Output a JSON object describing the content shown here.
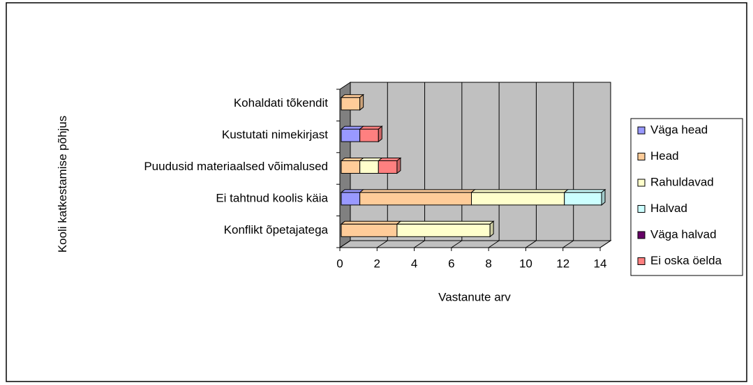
{
  "chart_data": {
    "type": "bar3d_stacked_horizontal",
    "xlabel": "Vastanute arv",
    "ylabel": "Kooli katkestamise põhjus",
    "categories": [
      "Konflikt õpetajatega",
      "Ei tahtnud koolis käia",
      "Puudusid materiaalsed võimalused",
      "Kustutati nimekirjast",
      "Kohaldati tõkendit"
    ],
    "series": [
      {
        "name": "Väga head",
        "color": "#9999ff",
        "values": [
          0,
          1,
          0,
          1,
          0
        ]
      },
      {
        "name": "Head",
        "color": "#ffcc99",
        "values": [
          3,
          6,
          1,
          0,
          1
        ]
      },
      {
        "name": "Rahuldavad",
        "color": "#ffffcc",
        "values": [
          5,
          5,
          1,
          0,
          0
        ]
      },
      {
        "name": "Halvad",
        "color": "#ccffff",
        "values": [
          0,
          2,
          0,
          0,
          0
        ]
      },
      {
        "name": "Väga halvad",
        "color": "#660066",
        "values": [
          0,
          0,
          0,
          0,
          0
        ]
      },
      {
        "name": "Ei oska öelda",
        "color": "#ff8080",
        "values": [
          0,
          0,
          1,
          1,
          0
        ]
      }
    ],
    "xlim": [
      0,
      14
    ],
    "xticks": [
      0,
      2,
      4,
      6,
      8,
      10,
      12,
      14
    ],
    "grid": true,
    "legend": "right"
  }
}
